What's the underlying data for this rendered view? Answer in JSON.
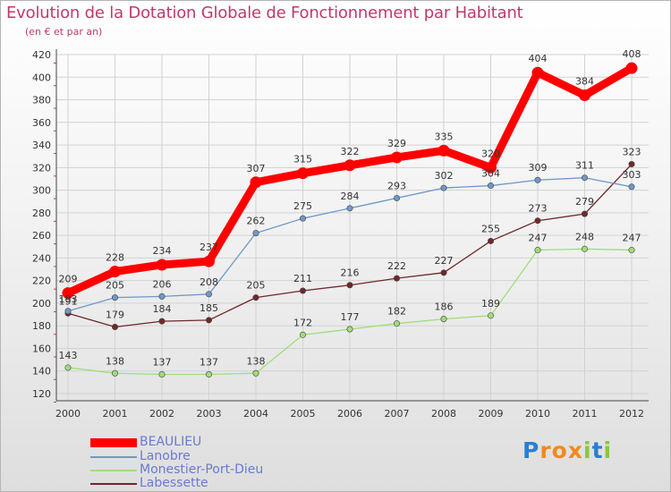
{
  "header": {
    "title": "Evolution de la Dotation Globale de Fonctionnement par Habitant",
    "subtitle": "(en € et par an)"
  },
  "colors": {
    "title": "#c0396b",
    "axis_text": "#333333",
    "legend_text": "#6a7ad2",
    "beaulieu": "#ff0000",
    "lanobre": "#6f98c8",
    "monestier": "#a0dd7a",
    "labessette": "#702828"
  },
  "chart_data": {
    "type": "line",
    "title": "Evolution de la Dotation Globale de Fonctionnement par Habitant",
    "subtitle": "(en € et par an)",
    "xlabel": "",
    "ylabel": "",
    "ylim": [
      120,
      420
    ],
    "yticks": [
      120,
      140,
      160,
      180,
      200,
      220,
      240,
      260,
      280,
      300,
      320,
      340,
      360,
      380,
      400,
      420
    ],
    "categories": [
      "2000",
      "2001",
      "2002",
      "2003",
      "2004",
      "2005",
      "2006",
      "2007",
      "2008",
      "2009",
      "2010",
      "2011",
      "2012"
    ],
    "grid": true,
    "series": [
      {
        "name": "BEAULIEU",
        "color": "#ff0000",
        "values": [
          209,
          228,
          234,
          237,
          307,
          315,
          322,
          329,
          335,
          320,
          404,
          384,
          408
        ]
      },
      {
        "name": "Lanobre",
        "color": "#6f98c8",
        "values": [
          193,
          205,
          206,
          208,
          262,
          275,
          284,
          293,
          302,
          304,
          309,
          311,
          303
        ]
      },
      {
        "name": "Monestier-Port-Dieu",
        "color": "#a0dd7a",
        "values": [
          143,
          138,
          137,
          137,
          138,
          172,
          177,
          182,
          186,
          189,
          247,
          248,
          247
        ]
      },
      {
        "name": "Labessette",
        "color": "#702828",
        "values": [
          191,
          179,
          184,
          185,
          205,
          211,
          216,
          222,
          227,
          255,
          273,
          279,
          323
        ]
      }
    ],
    "legend": {
      "placement": "bottom-left",
      "entries": [
        "BEAULIEU",
        "Lanobre",
        "Monestier-Port-Dieu",
        "Labessette"
      ]
    }
  },
  "logo": {
    "text": [
      "P",
      "r",
      "o",
      "x",
      "i",
      "t",
      "i"
    ],
    "letter_colors": [
      "#2a7fd0",
      "#f08a1c",
      "#f08a1c",
      "#f08a1c",
      "#8cc63f",
      "#2a7fd0",
      "#8cc63f"
    ]
  }
}
